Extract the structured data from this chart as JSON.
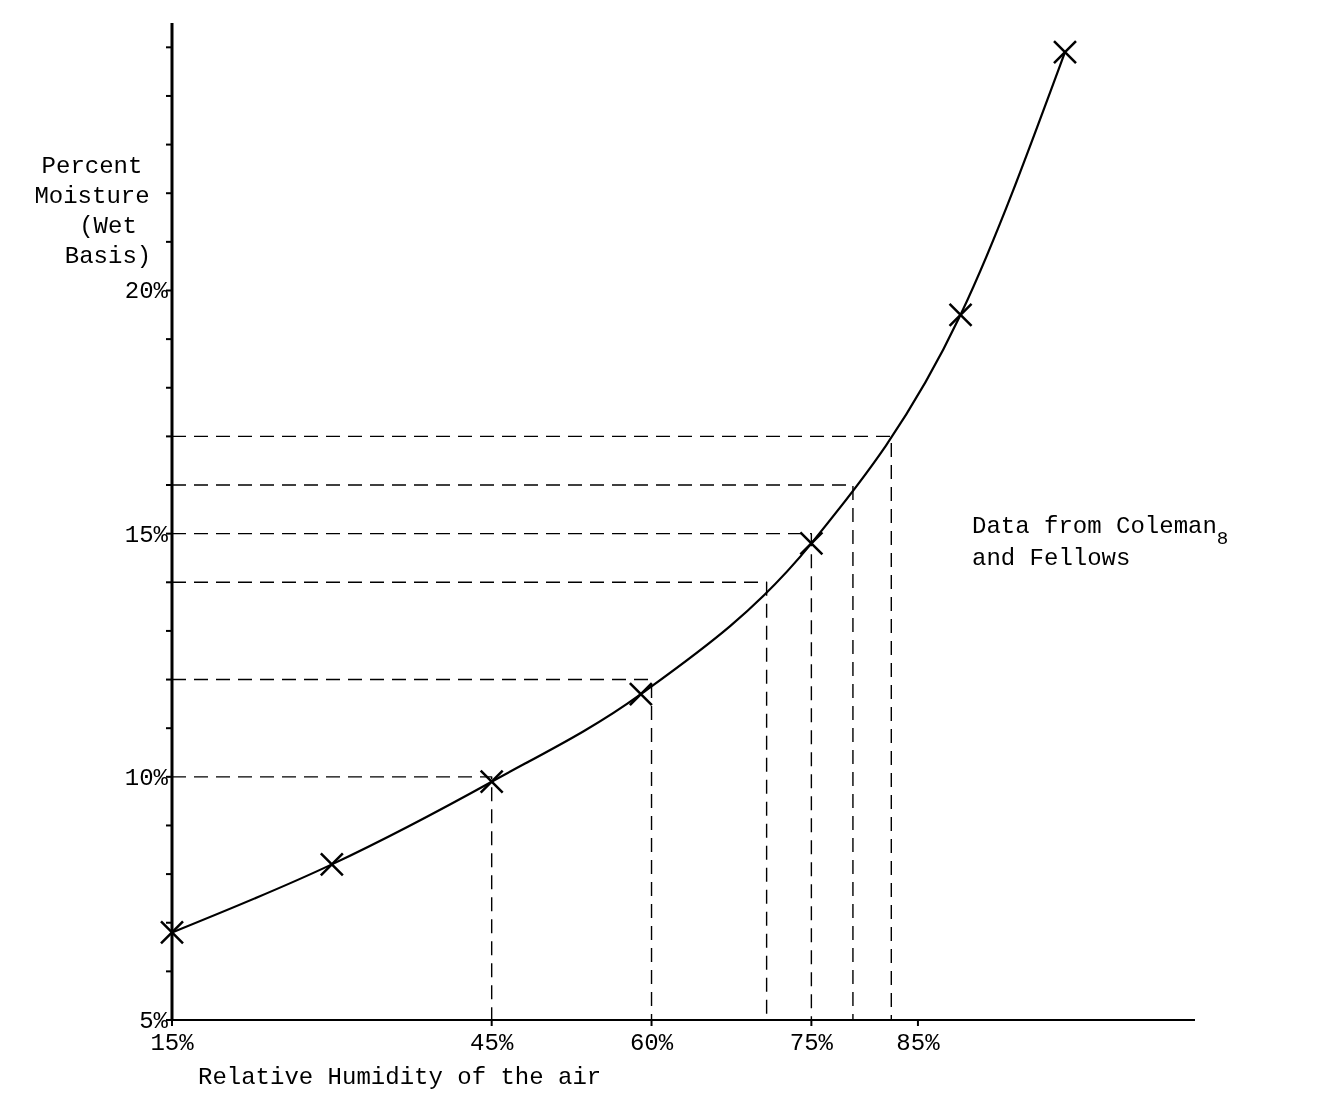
{
  "chart_data": {
    "type": "line",
    "xlabel": "Relative Humidity of the air",
    "ylabel": "Percent Moisture (Wet Basis)",
    "annotations": [
      "Data from Coleman$_{8}$ and Fellows"
    ],
    "xlim": [
      15,
      111
    ],
    "ylim": [
      5,
      25.5
    ],
    "xticks": [
      {
        "value": 15,
        "label": "15%"
      },
      {
        "value": 45,
        "label": "45%"
      },
      {
        "value": 60,
        "label": "60%"
      },
      {
        "value": 75,
        "label": "75%"
      },
      {
        "value": 85,
        "label": "85%"
      }
    ],
    "yticks": [
      {
        "value": 5,
        "label": "5%"
      },
      {
        "value": 6,
        "label": null
      },
      {
        "value": 7,
        "label": null
      },
      {
        "value": 8,
        "label": null
      },
      {
        "value": 9,
        "label": null
      },
      {
        "value": 10,
        "label": "10%"
      },
      {
        "value": 11,
        "label": null
      },
      {
        "value": 12,
        "label": null
      },
      {
        "value": 13,
        "label": null
      },
      {
        "value": 14,
        "label": null
      },
      {
        "value": 15,
        "label": "15%"
      },
      {
        "value": 16,
        "label": null
      },
      {
        "value": 17,
        "label": null
      },
      {
        "value": 18,
        "label": null
      },
      {
        "value": 19,
        "label": null
      },
      {
        "value": 20,
        "label": "20%"
      },
      {
        "value": 21,
        "label": null
      },
      {
        "value": 22,
        "label": null
      },
      {
        "value": 23,
        "label": null
      },
      {
        "value": 24,
        "label": null
      },
      {
        "value": 25,
        "label": null
      }
    ],
    "grid": false,
    "series": [
      {
        "color": "#000000",
        "marker": "cross",
        "line_style": "solid",
        "x": [
          15,
          30,
          45,
          59,
          75,
          89,
          98.8
        ],
        "values": [
          6.8,
          8.2,
          9.9,
          11.7,
          14.8,
          19.5,
          24.9
        ]
      },
      {
        "color": "#000000",
        "marker": "none",
        "line_style": "dashed",
        "x": [
          15,
          45,
          45
        ],
        "values": [
          10,
          10,
          5
        ]
      },
      {
        "color": "#000000",
        "marker": "none",
        "line_style": "dashed",
        "x": [
          15,
          60,
          60
        ],
        "values": [
          12,
          12,
          5
        ]
      },
      {
        "color": "#000000",
        "marker": "none",
        "line_style": "dashed",
        "x": [
          15,
          70.8,
          70.8
        ],
        "values": [
          14,
          14,
          5
        ]
      },
      {
        "color": "#000000",
        "marker": "none",
        "line_style": "dashed",
        "x": [
          15,
          75,
          75
        ],
        "values": [
          15,
          15,
          5
        ]
      },
      {
        "color": "#000000",
        "marker": "none",
        "line_style": "dashed",
        "x": [
          15,
          78.9,
          78.9
        ],
        "values": [
          16,
          16,
          5
        ]
      },
      {
        "color": "#000000",
        "marker": "none",
        "line_style": "dashed",
        "x": [
          15,
          82.5,
          82.5
        ],
        "values": [
          17,
          17,
          5
        ]
      }
    ]
  }
}
